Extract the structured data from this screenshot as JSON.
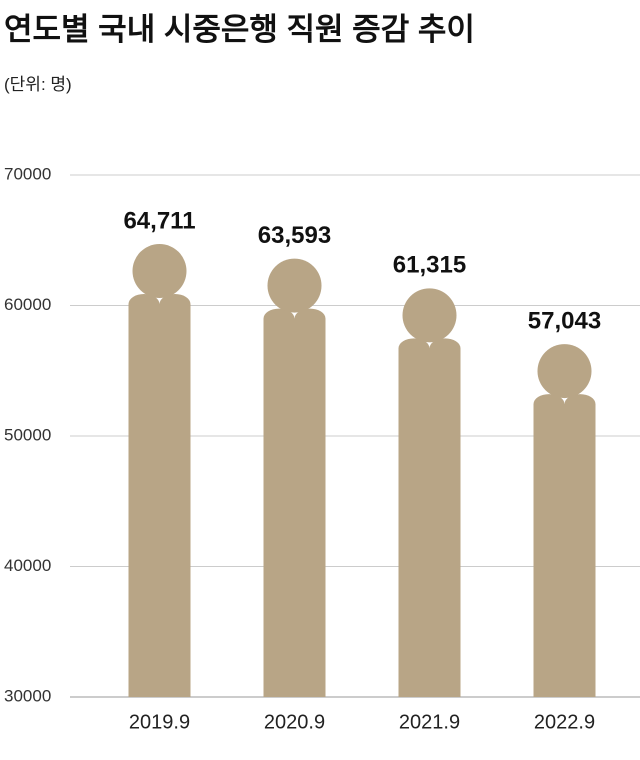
{
  "chart_data": {
    "type": "pictogram-bar",
    "title": "연도별 국내 시중은행 직원 증감 추이",
    "subtitle": "(단위: 명)",
    "categories": [
      "2019.9",
      "2020.9",
      "2021.9",
      "2022.9"
    ],
    "values": [
      64711,
      63593,
      61315,
      57043
    ],
    "value_labels": [
      "64,711",
      "63,593",
      "61,315",
      "57,043"
    ],
    "color": "#b8a586",
    "ylim": [
      30000,
      70000
    ],
    "yticks": [
      30000,
      40000,
      50000,
      60000,
      70000
    ],
    "grid": true
  }
}
